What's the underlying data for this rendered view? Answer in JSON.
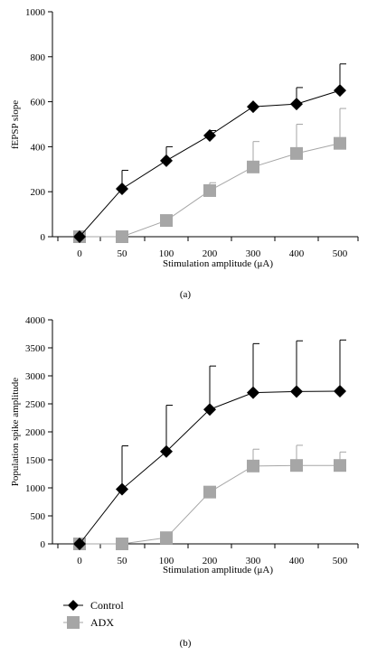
{
  "chart_data": [
    {
      "type": "line",
      "panel_label": "(a)",
      "xlabel": "Stimulation amplitude (μA)",
      "ylabel": "fEPSP slope",
      "categories": [
        "0",
        "50",
        "100",
        "200",
        "300",
        "400",
        "500"
      ],
      "yticks": [
        "0",
        "200",
        "400",
        "600",
        "800",
        "1000"
      ],
      "ylim": [
        0,
        1000
      ],
      "series": [
        {
          "name": "Control",
          "color": "#000000",
          "marker": "diamond",
          "values": [
            0,
            213,
            338,
            450,
            578,
            590,
            650
          ],
          "error_upper": [
            0,
            295,
            400,
            472,
            578,
            663,
            768
          ]
        },
        {
          "name": "ADX",
          "color": "#a6a6a6",
          "marker": "square",
          "values": [
            0,
            0,
            72,
            205,
            310,
            370,
            415
          ],
          "error_upper": [
            0,
            0,
            72,
            240,
            423,
            500,
            570
          ]
        }
      ]
    },
    {
      "type": "line",
      "panel_label": "(b)",
      "xlabel": "Stimulation amplitude (μA)",
      "ylabel": "Population spike amplitude",
      "categories": [
        "0",
        "50",
        "100",
        "200",
        "300",
        "400",
        "500"
      ],
      "yticks": [
        "0",
        "500",
        "1000",
        "1500",
        "2000",
        "2500",
        "3000",
        "3500",
        "4000"
      ],
      "ylim": [
        0,
        4000
      ],
      "series": [
        {
          "name": "Control",
          "color": "#000000",
          "marker": "diamond",
          "values": [
            0,
            975,
            1650,
            2400,
            2700,
            2720,
            2725
          ],
          "error_upper": [
            0,
            1750,
            2475,
            3175,
            3575,
            3625,
            3640
          ]
        },
        {
          "name": "ADX",
          "color": "#a6a6a6",
          "marker": "square",
          "values": [
            0,
            0,
            110,
            925,
            1390,
            1400,
            1400
          ],
          "error_upper": [
            0,
            0,
            110,
            925,
            1690,
            1760,
            1640
          ]
        }
      ]
    }
  ],
  "legend": {
    "position": "bottom-left",
    "items": [
      {
        "label": "Control",
        "marker": "diamond",
        "color": "#000000"
      },
      {
        "label": "ADX",
        "marker": "square",
        "color": "#a6a6a6"
      }
    ]
  }
}
